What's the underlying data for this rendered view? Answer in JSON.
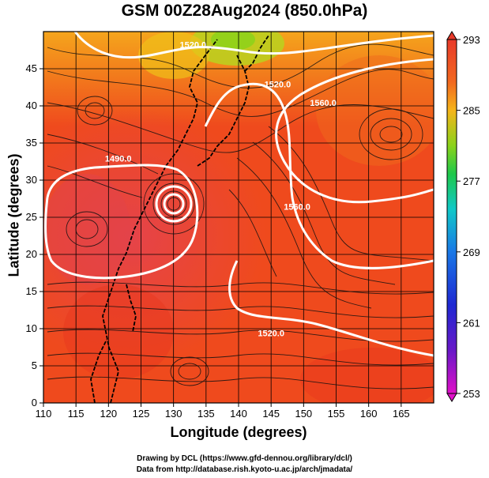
{
  "title": "GSM 00Z28Aug2024 (850.0hPa)",
  "chart_data": {
    "type": "map",
    "xlabel": "Longitude (degrees)",
    "ylabel": "Latitude  (degrees)",
    "xlim": [
      110,
      170
    ],
    "ylim": [
      0,
      50
    ],
    "xticks": [
      110,
      115,
      120,
      125,
      130,
      135,
      140,
      145,
      150,
      155,
      160,
      165
    ],
    "yticks": [
      0,
      5,
      10,
      15,
      20,
      25,
      30,
      35,
      40,
      45
    ],
    "colorbar": {
      "min": 253,
      "max": 293,
      "ticks": [
        293,
        285,
        277,
        269,
        261,
        253
      ]
    },
    "contour_labels": [
      {
        "text": "1520.0",
        "lon": 133,
        "lat": 47.8
      },
      {
        "text": "1520.0",
        "lon": 146,
        "lat": 42.5
      },
      {
        "text": "1490.0",
        "lon": 121.5,
        "lat": 32.5
      },
      {
        "text": "1560.0",
        "lon": 153,
        "lat": 40
      },
      {
        "text": "1560.0",
        "lon": 149,
        "lat": 26
      },
      {
        "text": "1520.0",
        "lon": 145,
        "lat": 9
      }
    ]
  },
  "credits": {
    "line1": "Drawing by DCL (https://www.gfd-dennou.org/library/dcl/)",
    "line2": "Data from http://database.rish.kyoto-u.ac.jp/arch/jmadata/"
  }
}
